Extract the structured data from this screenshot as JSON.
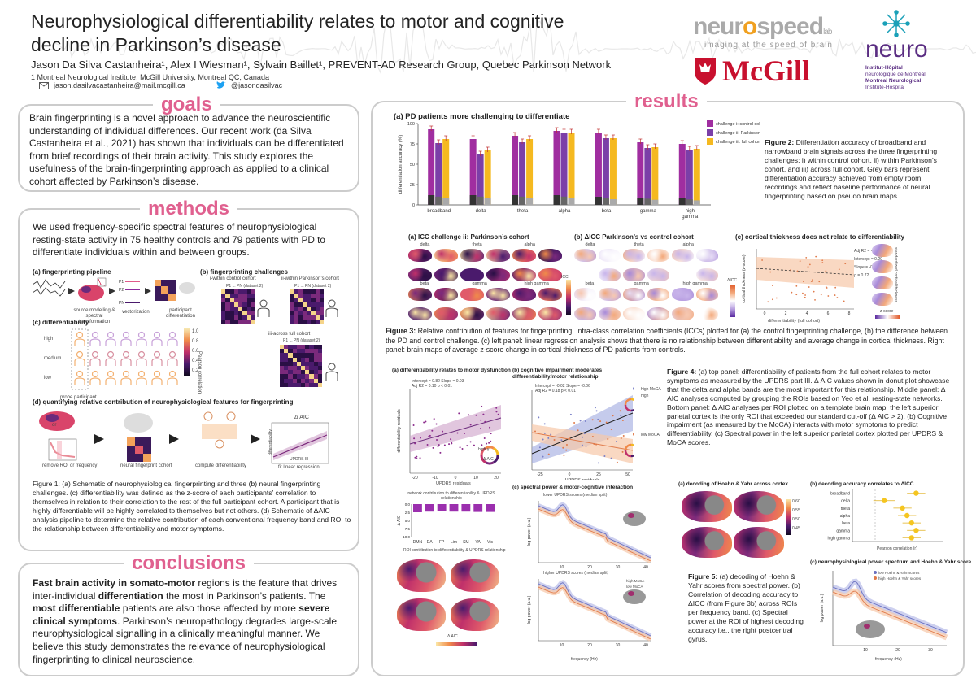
{
  "header": {
    "title_line1": "Neurophysiological differentiability relates to motor and cognitive",
    "title_line2": "decline in Parkinson’s disease",
    "authors": "Jason Da Silva Castanheira¹, Alex I Wiesman¹, Sylvain Baillet¹, PREVENT-AD Research Group, Quebec Parkinson Network",
    "affiliation": "1 Montreal Neurological Institute, McGill University, Montreal QC, Canada",
    "email": "jason.dasilvacastanheira@mail.mcgill.ca",
    "twitter": "@jasondasilvac"
  },
  "logos": {
    "neurospeed": "neurospeed",
    "neurospeed_lab": "lab",
    "neurospeed_tagline": "imaging at the speed of brain",
    "mcgill": "McGill",
    "neuro": "neuro",
    "neuro_line1": "Institut-Hôpital",
    "neuro_line2": "neurologique de Montréal",
    "neuro_line3": "Montreal Neurological",
    "neuro_line4": "Institute-Hospital"
  },
  "goals": {
    "heading": "goals",
    "text": "Brain fingerprinting is a novel approach to advance the neuroscientific understanding of individual differences. Our recent work (da Silva Castanheira et al., 2021) has shown that individuals can be differentiated from brief recordings of their brain activity. This study explores the usefulness of the brain-fingerprinting approach as applied to a clinical cohort affected by Parkinson’s disease."
  },
  "methods": {
    "heading": "methods",
    "text": "We used frequency-specific spectral features of neurophysiological resting-state activity in 75 healthy controls and 79 patients with PD to differentiate individuals within and between groups.",
    "fig_a": "(a) fingerprinting pipeline",
    "fig_a_src": "source modelling & spectral transformation",
    "fig_a_vec": "vectorization",
    "fig_a_part": "participant differentiation",
    "fig_b": "(b) fingerprinting challenges",
    "fig_b_i": "i-within control cohort",
    "fig_b_ii": "ii-within Parkinson’s cohort",
    "fig_b_iii": "iii-across full cohort",
    "fig_b_axis": "P1 ... PN (dataset 2)",
    "fig_b_axis_y": "P1 ... PN (dataset 1)",
    "fig_c": "(c) differentiability",
    "fig_c_high": "high",
    "fig_c_medium": "medium",
    "fig_c_low": "low",
    "fig_c_probe": "probe participant",
    "fig_c_scale": "Pearson correlation",
    "fig_c_ticks": [
      "1.0",
      "0.8",
      "0.6",
      "0.4",
      "0.2"
    ],
    "fig_d": "(d) quantifying relative contribution of neurophysiological features for fingerprinting",
    "fig_d_or": "or",
    "fig_d_remove": "remove ROI or frequency",
    "fig_d_cohort": "neural fingerprint cohort",
    "fig_d_compute": "compute differentiability",
    "fig_d_fit": "fit linear regression",
    "fig_d_aic": "Δ AIC",
    "fig_d_updrs": "UPDRS III",
    "fig_d_diff": "differentiability",
    "caption": "Figure 1: (a) Schematic of neurophysiological fingerprinting and three (b) neural fingerprinting challenges. (c) differentiability was defined as the z-score of each participants’ correlation to themselves in relation to their correlation to the rest of the full participant cohort. A participant that is highly differentiable will be highly correlated to themselves but not others. (d) Schematic of ΔAIC analysis pipeline to determine the relative contribution of each conventional frequency band and ROI to the relationship between differentiability and motor symptoms."
  },
  "conclusions": {
    "heading": "conclusions",
    "p1": "Fast brain activity in somato-motor",
    "p2": " regions is the feature that drives inter-individual ",
    "p3": "differentiation",
    "p4": " the most in Parkinson’s patients. The ",
    "p5": "most differentiable",
    "p6": " patients are also those affected by more ",
    "p7": "severe clinical symptoms",
    "p8": ". Parkinson’s neuropathology degrades large-scale neurophysiological signalling in a clinically meaningful manner. We believe this study demonstrates the relevance of neurophysiological fingerprinting to clinical neuroscience."
  },
  "results": {
    "heading": "results",
    "fig2_title": "(a) PD patients more challenging to differentiate",
    "fig2_caption_bold": "Figure 2:",
    "fig2_caption": " Differentiation accuracy of broadband and narrowband brain signals across the three fingerprinting challenges: i) within control cohort, ii) within Parkinson’s cohort, and iii) across full cohort. Grey bars represent differentiation accuracy achieved from empty room recordings and reflect baseline performance of neural fingerprinting based on pseudo brain maps.",
    "fig3a": "(a) ICC challenge ii: Parkinson’s cohort",
    "fig3b": "(b) ΔICC Parkinson’s vs control cohort",
    "fig3c": "(c) cortical thickness does not relate to differentiability",
    "fig3_bands": [
      "delta",
      "theta",
      "alpha",
      "beta",
      "gamma",
      "high gamma"
    ],
    "fig3a_scale": "ICC",
    "fig3a_ticks": [
      "0.8",
      "0.7",
      "0.6",
      "0.5",
      "0.4"
    ],
    "fig3b_scale": "ΔICC",
    "fig3b_ticks": [
      "0.50",
      "0.25",
      "0",
      "-0.25",
      "-0.50"
    ],
    "fig3c_xlabel": "differentiability (full cohort)",
    "fig3c_ylabel": "cortical thickness (z-score)",
    "fig3c_stats": [
      "Adj R2 = -0.01",
      "Intercept = 0.20",
      "Slope = -0.02",
      "ρ = 0.72"
    ],
    "fig3c_side": "standardized cortical thickness",
    "fig3c_z": "z-score",
    "fig3_caption_bold": "Figure 3:",
    "fig3_caption": " Relative contribution of features for fingerprinting. Intra-class correlation coefficients (ICCs) plotted for (a) the control fingerprinting challenge, (b) the difference between the PD and control challenge. (c) left panel: linear regression analysis shows that there is no relationship between differentiability and average change in cortical thickness. Right panel: brain maps of average z-score change in cortical thickness of PD patients from controls.",
    "fig4a": "(a) differentiability relates to motor dysfunction",
    "fig4a_stats1": "Intercept = 0.82 Slope = 0.03",
    "fig4a_stats2": "Adj R2 = 0.10  p < 0.01",
    "fig4a_xlabel": "UPDRS residuals",
    "fig4a_ylabel": "differentiability residuals",
    "fig4a_donut_label": "Δ AIC",
    "fig4a_highg": "high γ",
    "fig4b": "(b) cognitive impairment moderates differentiability/motor relationship",
    "fig4b_stats1": "Intercept = -0.02 Slope = -0.06",
    "fig4b_stats2": "Adj R2 = 0.18  p < 0.01",
    "fig4b_highmoca": "high MoCA",
    "fig4b_lowmoca": "low MoCA",
    "fig4b_high": "high",
    "fig4_network_title": "network contribution to differentiability & UPDRS relationship",
    "fig4_network_ylabel": "Δ AIC",
    "fig4_network_yticks": [
      "0.0",
      "2.5",
      "5.0",
      "7.5",
      "10.0"
    ],
    "fig4_roi_title": "ROI contribution to differentiability & UPDRS relationship",
    "fig4_roi_scale": "Δ AIC",
    "fig4_roi_ticks": [
      "-2",
      "0",
      "2"
    ],
    "fig4c": "(c) spectral power & motor-cognitive interaction",
    "fig4c_top": "lower UPDRS scores (median split)",
    "fig4c_bottom": "higher UPDRS scores (median split)",
    "fig4c_ylabel": "log power (a.u.)",
    "fig4c_xlabel": "frequency (Hz)",
    "fig4c_xticks": [
      "10",
      "20",
      "30",
      "40"
    ],
    "fig4_caption_bold": "Figure 4:",
    "fig4_caption": " (a) top panel: differentiability of patients from the full cohort relates to motor symptoms as measured by the UPDRS part III. Δ AIC values shown in donut plot showcase that the delta and alpha bands are the most important for this relationship. Middle panel: Δ AIC analyses computed by grouping the ROIs based on Yeo et al. resting-state networks. Bottom panel: Δ AIC analyses per ROI plotted on a template brain map: the left superior parietal cortex is the only ROI that exceeded our standard cut-off (Δ AIC > 2). (b) Cognitive impairment (as measured by the MoCA) interacts with motor symptoms to predict differentiability. (c) Spectral power in the left superior parietal cortex plotted per UPDRS & MoCA scores.",
    "fig5a": "(a) decoding of Hoehn & Yahr across cortex",
    "fig5a_scale": "decoding accuracy",
    "fig5a_ticks": [
      "0.60",
      "0.55",
      "0.50",
      "0.45"
    ],
    "fig5b": "(b) decoding accuracy correlates to ΔICC",
    "fig5b_xlabel": "Pearson correlation (r)",
    "fig5c": "(c) neurophysiological power spectrum and Hoehn & Yahr score",
    "fig5c_legend_low": "low Hoehn & Yahr scores",
    "fig5c_legend_high": "high Hoehn & Yahr scores",
    "fig5c_ylabel": "log power (a.u.)",
    "fig5c_xlabel": "frequency (Hz)",
    "fig5c_xticks": [
      "10",
      "20",
      "30"
    ],
    "fig5_caption_bold": "Figure 5:",
    "fig5_caption": " (a) decoding of Hoehn & Yahr scores from spectral power. (b) Correlation of decoding accuracy to ΔICC (from Figure 3b) across ROIs per frequency band. (c) Spectral power at the ROI of highest decoding accuracy i.e., the right postcentral gyrus."
  },
  "chart_data": [
    {
      "type": "bar",
      "title": "(a) PD patients more challenging to differentiate",
      "ylabel": "differentiation accuracy (%)",
      "ylim": [
        0,
        100
      ],
      "yticks": [
        0,
        25,
        50,
        75,
        100
      ],
      "categories": [
        "broadband",
        "delta",
        "theta",
        "alpha",
        "beta",
        "gamma",
        "high gamma"
      ],
      "series": [
        {
          "name": "challenge i: control cohort",
          "color": "#a02ea0",
          "values": [
            93,
            81,
            85,
            91,
            89,
            77,
            75
          ]
        },
        {
          "name": "challenge ii: Parkinson's cohort",
          "color": "#7b3fa8",
          "values": [
            76,
            62,
            77,
            89,
            82,
            70,
            68
          ]
        },
        {
          "name": "challenge iii: full cohort",
          "color": "#f5b920",
          "values": [
            81,
            67,
            81,
            89,
            82,
            71,
            69
          ]
        }
      ],
      "baseline_grey": [
        12,
        12,
        12,
        12,
        10,
        9,
        8
      ],
      "legend": "top-right"
    },
    {
      "type": "bar",
      "title": "network contribution to differentiability & UPDRS relationship",
      "ylabel": "Δ AIC",
      "categories": [
        "DMN",
        "DA",
        "FP",
        "Lim",
        "SM",
        "VA",
        "Vis"
      ],
      "values": [
        2.5,
        2.3,
        2.2,
        2.3,
        2.3,
        2.4,
        2.4
      ],
      "ylim": [
        0,
        10
      ],
      "color": "#9b2fae"
    },
    {
      "type": "scatter",
      "title": "(b) decoding accuracy correlates to ΔICC",
      "xlabel": "Pearson correlation (r)",
      "categories": [
        "broadband",
        "delta",
        "theta",
        "alpha",
        "beta",
        "gamma",
        "high gamma"
      ],
      "values": [
        0.45,
        0.1,
        0.3,
        0.35,
        0.4,
        0.45,
        0.4
      ],
      "errors": [
        0.1,
        0.12,
        0.1,
        0.1,
        0.1,
        0.1,
        0.1
      ],
      "xlim": [
        -0.25,
        0.75
      ],
      "color": "#f5c520"
    }
  ]
}
